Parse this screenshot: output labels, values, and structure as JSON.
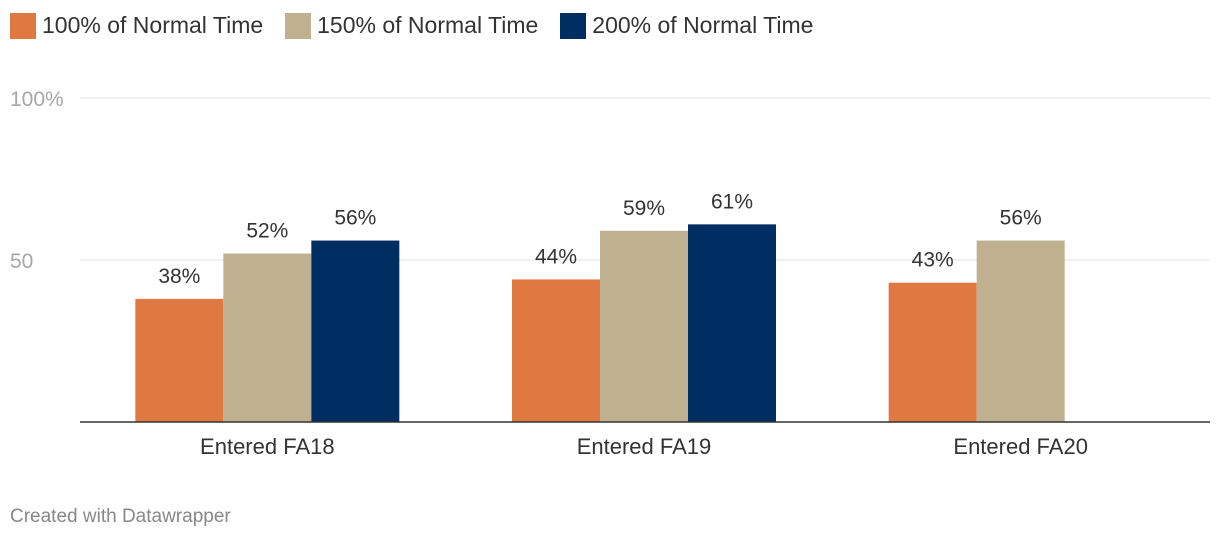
{
  "chart_data": {
    "type": "bar",
    "categories": [
      "Entered FA18",
      "Entered FA19",
      "Entered FA20"
    ],
    "series": [
      {
        "name": "100% of Normal Time",
        "color": "#e07842",
        "values": [
          38,
          44,
          43
        ]
      },
      {
        "name": "150% of Normal Time",
        "color": "#bfb08f",
        "values": [
          52,
          59,
          56
        ]
      },
      {
        "name": "200% of Normal Time",
        "color": "#002d62",
        "values": [
          56,
          61,
          null
        ]
      }
    ],
    "y_ticks": [
      {
        "value": 100,
        "label": "100%"
      },
      {
        "value": 50,
        "label": "50"
      }
    ],
    "ylim": [
      0,
      100
    ],
    "value_suffix": "%",
    "legend_position": "top-left",
    "grid": true
  },
  "footer": {
    "credit": "Created with Datawrapper"
  }
}
